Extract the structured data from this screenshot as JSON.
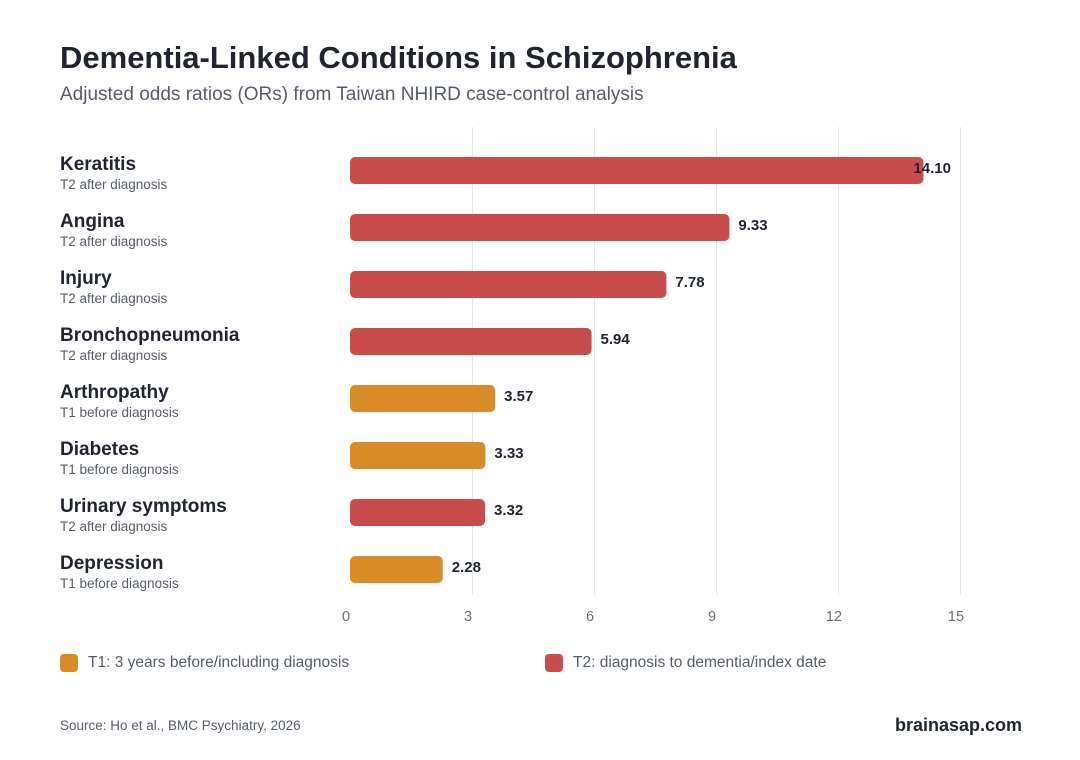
{
  "chart_data": {
    "type": "bar",
    "orientation": "horizontal",
    "title": "Dementia-Linked Conditions in Schizophrenia",
    "subtitle": "Adjusted odds ratios (ORs) from Taiwan NHIRD case-control analysis",
    "xlim": [
      0,
      15
    ],
    "xticks": [
      0,
      3,
      6,
      9,
      12,
      15
    ],
    "grid": true,
    "categories": [
      {
        "name": "Keratitis",
        "period_label": "T2 after diagnosis",
        "period": "T2",
        "value": 14.1,
        "value_label": "14.10"
      },
      {
        "name": "Angina",
        "period_label": "T2 after diagnosis",
        "period": "T2",
        "value": 9.33,
        "value_label": "9.33"
      },
      {
        "name": "Injury",
        "period_label": "T2 after diagnosis",
        "period": "T2",
        "value": 7.78,
        "value_label": "7.78"
      },
      {
        "name": "Bronchopneumonia",
        "period_label": "T2 after diagnosis",
        "period": "T2",
        "value": 5.94,
        "value_label": "5.94"
      },
      {
        "name": "Arthropathy",
        "period_label": "T1 before diagnosis",
        "period": "T1",
        "value": 3.57,
        "value_label": "3.57"
      },
      {
        "name": "Diabetes",
        "period_label": "T1 before diagnosis",
        "period": "T1",
        "value": 3.33,
        "value_label": "3.33"
      },
      {
        "name": "Urinary symptoms",
        "period_label": "T2 after diagnosis",
        "period": "T2",
        "value": 3.32,
        "value_label": "3.32"
      },
      {
        "name": "Depression",
        "period_label": "T1 before diagnosis",
        "period": "T1",
        "value": 2.28,
        "value_label": "2.28"
      }
    ],
    "legend": {
      "placement": "bottom",
      "items": [
        {
          "key": "T1",
          "label": "T1: 3 years before/including diagnosis",
          "color": "#d88b27"
        },
        {
          "key": "T2",
          "label": "T2: diagnosis to dementia/index date",
          "color": "#c94c4c"
        }
      ]
    }
  },
  "footer": {
    "source": "Source: Ho et al., BMC Psychiatry, 2026",
    "brand": "brainasap.com"
  }
}
